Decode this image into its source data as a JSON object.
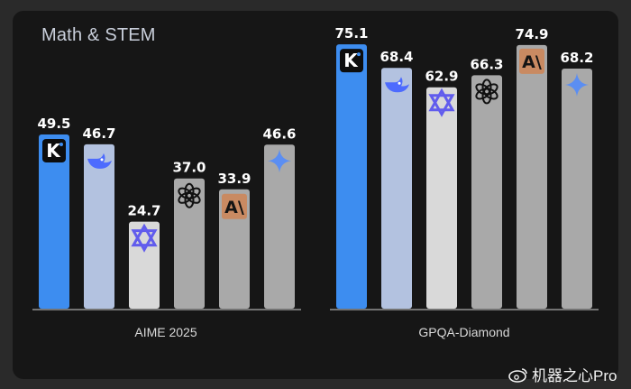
{
  "title": "Math & STEM",
  "chart_data": {
    "type": "bar",
    "title": "Math & STEM",
    "groups": [
      {
        "category": "AIME 2025",
        "bars": [
          {
            "value": 49.5,
            "label": "49.5",
            "icon": "kimi-k-logo-icon",
            "color": "#3d8df0"
          },
          {
            "value": 46.7,
            "label": "46.7",
            "icon": "deepseek-whale-icon",
            "color": "#b3c2e0"
          },
          {
            "value": 24.7,
            "label": "24.7",
            "icon": "qwen-logo-icon",
            "color": "#d9d9d9"
          },
          {
            "value": 37.0,
            "label": "37.0",
            "icon": "openai-logo-icon",
            "color": "#a9a9a9"
          },
          {
            "value": 33.9,
            "label": "33.9",
            "icon": "anthropic-logo-icon",
            "color": "#a9a9a9"
          },
          {
            "value": 46.6,
            "label": "46.6",
            "icon": "gemini-sparkle-icon",
            "color": "#a9a9a9"
          }
        ]
      },
      {
        "category": "GPQA-Diamond",
        "bars": [
          {
            "value": 75.1,
            "label": "75.1",
            "icon": "kimi-k-logo-icon",
            "color": "#3d8df0"
          },
          {
            "value": 68.4,
            "label": "68.4",
            "icon": "deepseek-whale-icon",
            "color": "#b3c2e0"
          },
          {
            "value": 62.9,
            "label": "62.9",
            "icon": "qwen-logo-icon",
            "color": "#d9d9d9"
          },
          {
            "value": 66.3,
            "label": "66.3",
            "icon": "openai-logo-icon",
            "color": "#a9a9a9"
          },
          {
            "value": 74.9,
            "label": "74.9",
            "icon": "anthropic-logo-icon",
            "color": "#a9a9a9"
          },
          {
            "value": 68.2,
            "label": "68.2",
            "icon": "gemini-sparkle-icon",
            "color": "#a9a9a9"
          }
        ]
      }
    ],
    "ylim": [
      0,
      80
    ],
    "grid": false,
    "legend": "none"
  },
  "watermark": {
    "text": "机器之心Pro",
    "icon": "weibo-logo-icon"
  }
}
